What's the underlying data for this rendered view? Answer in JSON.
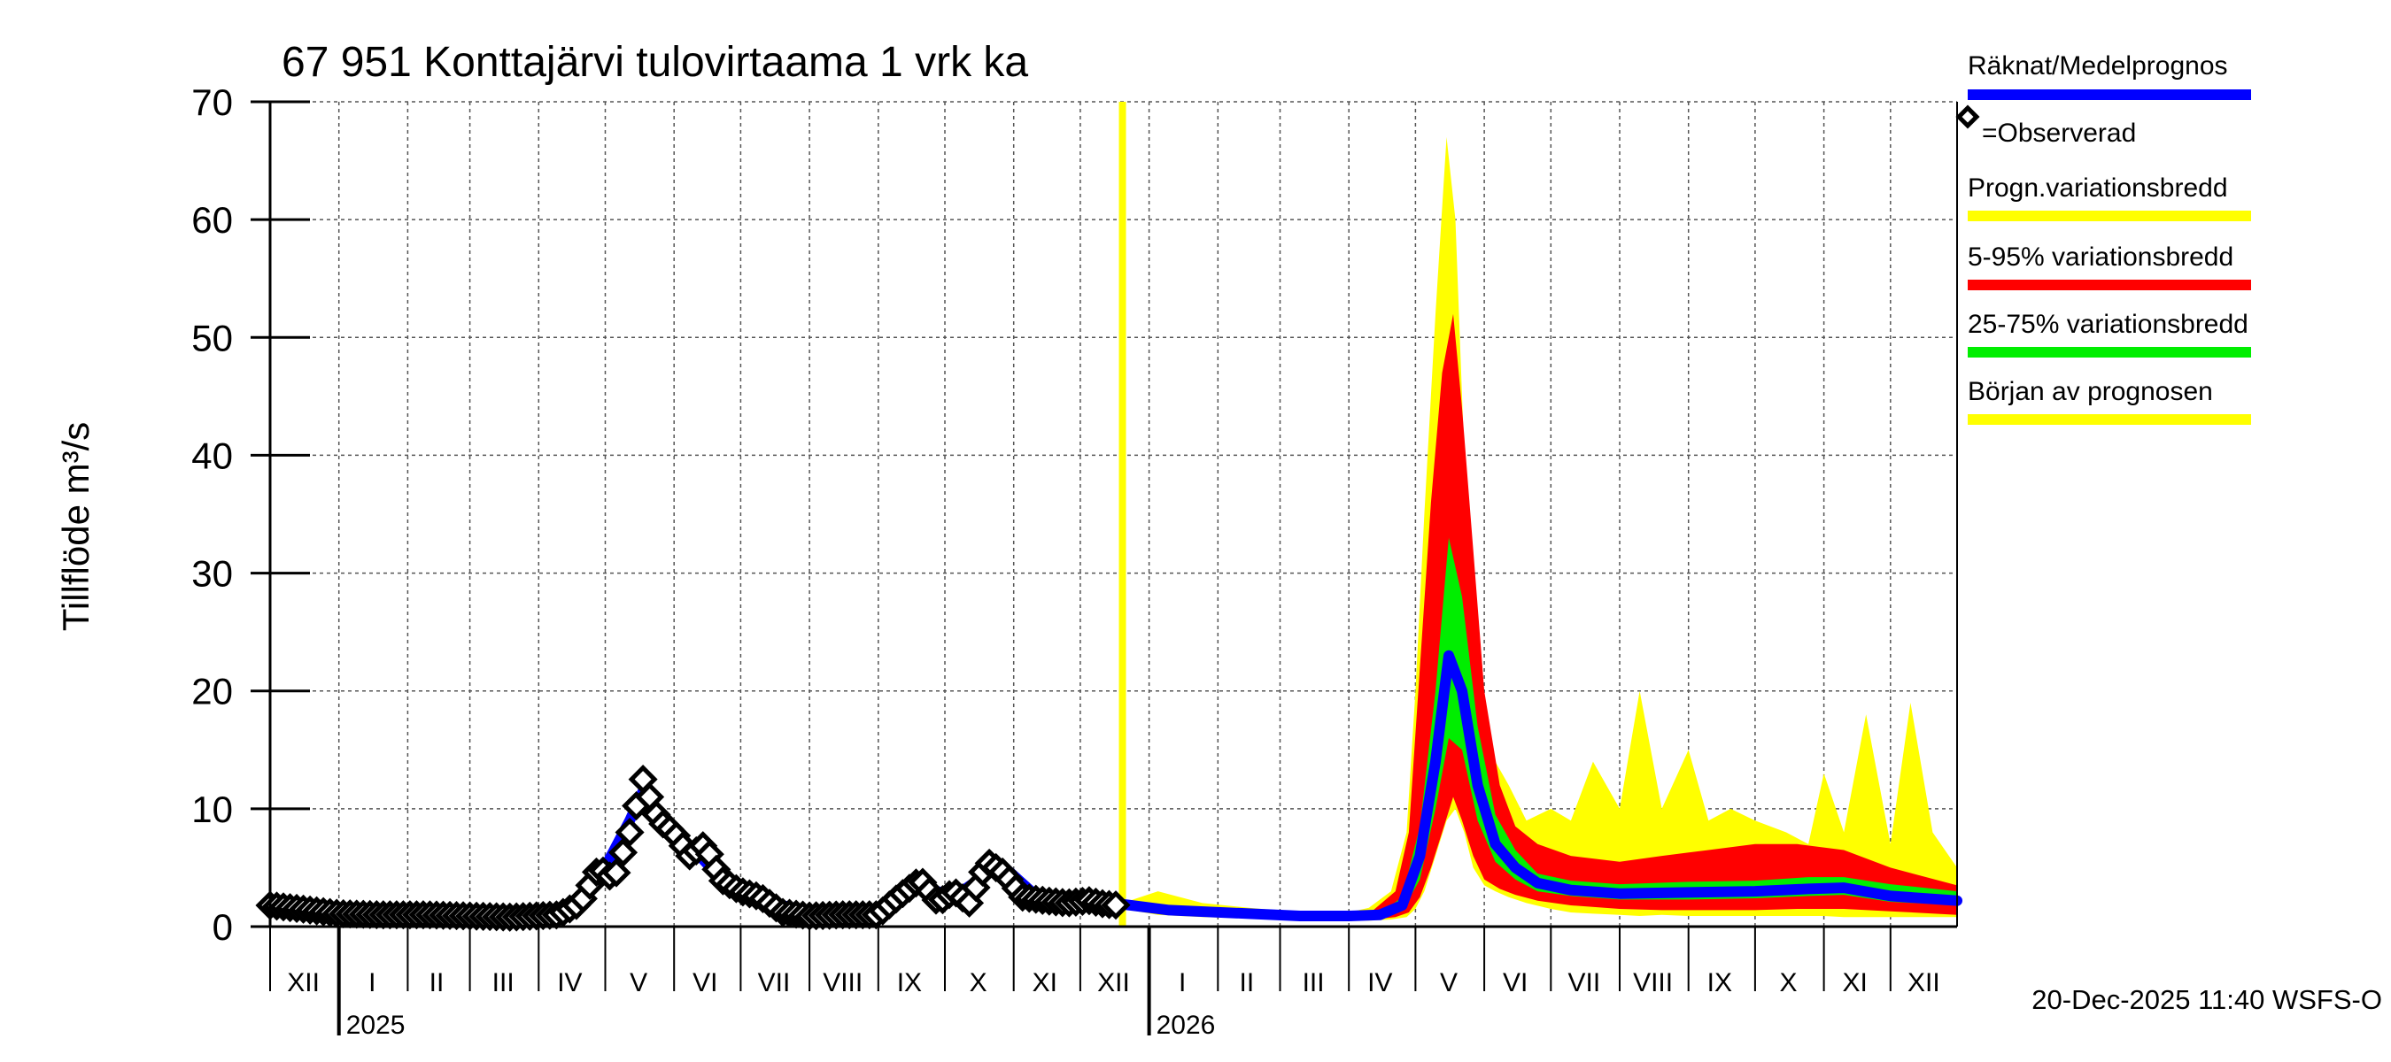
{
  "chart_data": {
    "type": "area",
    "title": "67 951 Konttajärvi tulovirtaama 1 vrk ka",
    "ylabel": "Tillflöde m³/s",
    "ylim": [
      0,
      70
    ],
    "yticks": [
      0,
      10,
      20,
      30,
      40,
      50,
      60,
      70
    ],
    "x_start": "2024-12-01",
    "x_end": "2026-12-31",
    "forecast_start": "2025-12-20",
    "month_labels": [
      {
        "label": "XII",
        "date": "2024-12-16"
      },
      {
        "label": "I",
        "date": "2025-01-16"
      },
      {
        "label": "II",
        "date": "2025-02-14"
      },
      {
        "label": "III",
        "date": "2025-03-16"
      },
      {
        "label": "IV",
        "date": "2025-04-15"
      },
      {
        "label": "V",
        "date": "2025-05-16"
      },
      {
        "label": "VI",
        "date": "2025-06-15"
      },
      {
        "label": "VII",
        "date": "2025-07-16"
      },
      {
        "label": "VIII",
        "date": "2025-08-16"
      },
      {
        "label": "IX",
        "date": "2025-09-15"
      },
      {
        "label": "X",
        "date": "2025-10-16"
      },
      {
        "label": "XI",
        "date": "2025-11-15"
      },
      {
        "label": "XII",
        "date": "2025-12-16"
      },
      {
        "label": "I",
        "date": "2026-01-16"
      },
      {
        "label": "II",
        "date": "2026-02-14"
      },
      {
        "label": "III",
        "date": "2026-03-16"
      },
      {
        "label": "IV",
        "date": "2026-04-15"
      },
      {
        "label": "V",
        "date": "2026-05-16"
      },
      {
        "label": "VI",
        "date": "2026-06-15"
      },
      {
        "label": "VII",
        "date": "2026-07-16"
      },
      {
        "label": "VIII",
        "date": "2026-08-16"
      },
      {
        "label": "IX",
        "date": "2026-09-15"
      },
      {
        "label": "X",
        "date": "2026-10-16"
      },
      {
        "label": "XI",
        "date": "2026-11-15"
      },
      {
        "label": "XII",
        "date": "2026-12-16"
      }
    ],
    "year_labels": [
      {
        "label": "2025",
        "date": "2025-01-01"
      },
      {
        "label": "2026",
        "date": "2026-01-01"
      }
    ],
    "observed": {
      "name": "Observerad",
      "x": [
        "2024-12-01",
        "2024-12-15",
        "2025-01-01",
        "2025-01-20",
        "2025-02-10",
        "2025-03-01",
        "2025-03-20",
        "2025-04-10",
        "2025-04-20",
        "2025-04-28",
        "2025-05-05",
        "2025-05-12",
        "2025-05-18",
        "2025-05-25",
        "2025-06-01",
        "2025-06-08",
        "2025-06-15",
        "2025-06-22",
        "2025-07-01",
        "2025-07-10",
        "2025-07-20",
        "2025-08-01",
        "2025-08-15",
        "2025-09-01",
        "2025-09-10",
        "2025-09-20",
        "2025-09-28",
        "2025-10-05",
        "2025-10-12",
        "2025-10-20",
        "2025-10-28",
        "2025-11-05",
        "2025-11-15",
        "2025-11-25",
        "2025-12-05",
        "2025-12-12",
        "2025-12-19"
      ],
      "values": [
        1.8,
        1.5,
        1.1,
        1.0,
        1.0,
        0.9,
        0.8,
        1.0,
        2.0,
        5.0,
        4.0,
        8.0,
        12.5,
        9.0,
        8.0,
        6.0,
        7.0,
        4.0,
        3.0,
        2.5,
        1.2,
        0.9,
        1.0,
        1.0,
        2.5,
        4.0,
        2.0,
        3.0,
        2.0,
        5.5,
        4.5,
        2.5,
        2.2,
        2.0,
        2.2,
        1.9,
        1.8
      ]
    },
    "series": [
      {
        "name": "Räknat/Medelprognos",
        "x": [
          "2024-12-01",
          "2025-01-15",
          "2025-03-01",
          "2025-04-15",
          "2025-04-28",
          "2025-05-12",
          "2025-05-18",
          "2025-05-28",
          "2025-06-10",
          "2025-06-25",
          "2025-07-15",
          "2025-08-10",
          "2025-09-01",
          "2025-09-20",
          "2025-10-05",
          "2025-10-20",
          "2025-10-28",
          "2025-11-10",
          "2025-12-01",
          "2025-12-20",
          "2026-01-10",
          "2026-02-15",
          "2026-03-10",
          "2026-04-01",
          "2026-04-15",
          "2026-04-25",
          "2026-05-03",
          "2026-05-10",
          "2026-05-16",
          "2026-05-22",
          "2026-05-29",
          "2026-06-06",
          "2026-06-15",
          "2026-06-25",
          "2026-07-10",
          "2026-08-01",
          "2026-09-01",
          "2026-10-01",
          "2026-10-25",
          "2026-11-10",
          "2026-12-01",
          "2026-12-31"
        ],
        "values": [
          1.7,
          1.0,
          0.9,
          0.9,
          4.0,
          9.0,
          11.5,
          8.5,
          6.5,
          3.5,
          2.0,
          0.9,
          1.0,
          3.5,
          2.5,
          4.5,
          5.0,
          2.8,
          2.1,
          1.9,
          1.4,
          1.1,
          0.9,
          0.9,
          1.0,
          1.8,
          6.0,
          14.0,
          23.0,
          20.0,
          12.0,
          7.0,
          5.0,
          3.7,
          3.1,
          2.8,
          2.9,
          3.0,
          3.2,
          3.3,
          2.6,
          2.2
        ]
      }
    ],
    "bands": [
      {
        "name": "Progn.variationsbredd",
        "color": "#ffff00",
        "x": [
          "2025-12-20",
          "2026-01-05",
          "2026-01-25",
          "2026-02-15",
          "2026-03-10",
          "2026-04-01",
          "2026-04-10",
          "2026-04-20",
          "2026-04-27",
          "2026-05-01",
          "2026-05-05",
          "2026-05-10",
          "2026-05-15",
          "2026-05-19",
          "2026-05-23",
          "2026-05-27",
          "2026-06-01",
          "2026-06-06",
          "2026-06-12",
          "2026-06-20",
          "2026-07-01",
          "2026-07-10",
          "2026-07-20",
          "2026-08-01",
          "2026-08-10",
          "2026-08-20",
          "2026-09-01",
          "2026-09-10",
          "2026-09-20",
          "2026-10-01",
          "2026-10-15",
          "2026-10-25",
          "2026-11-01",
          "2026-11-10",
          "2026-11-20",
          "2026-12-01",
          "2026-12-10",
          "2026-12-20",
          "2026-12-31"
        ],
        "low": [
          1.5,
          1.0,
          0.8,
          0.7,
          0.6,
          0.5,
          0.5,
          0.6,
          0.8,
          1.5,
          3.0,
          6.0,
          9.0,
          10.0,
          8.0,
          5.0,
          3.5,
          3.0,
          2.5,
          2.0,
          1.5,
          1.2,
          1.1,
          1.0,
          0.9,
          1.0,
          0.9,
          0.9,
          0.9,
          0.9,
          0.9,
          0.9,
          0.9,
          0.8,
          0.8,
          0.8,
          0.8,
          0.8,
          0.8
        ],
        "high": [
          2.0,
          3.0,
          2.0,
          1.6,
          1.2,
          1.2,
          1.6,
          3.0,
          8.0,
          20.0,
          35.0,
          52.0,
          67.0,
          60.0,
          40.0,
          25.0,
          18.0,
          14.0,
          12.0,
          9.0,
          10.0,
          9.0,
          14.0,
          10.0,
          20.0,
          10.0,
          15.0,
          9.0,
          10.0,
          9.0,
          8.0,
          7.0,
          13.0,
          8.0,
          18.0,
          7.0,
          19.0,
          8.0,
          5.0
        ]
      },
      {
        "name": "5-95% variationsbredd",
        "color": "#ff0000",
        "x": [
          "2025-12-20",
          "2026-01-15",
          "2026-02-15",
          "2026-03-10",
          "2026-04-01",
          "2026-04-12",
          "2026-04-22",
          "2026-04-28",
          "2026-05-03",
          "2026-05-08",
          "2026-05-13",
          "2026-05-18",
          "2026-05-22",
          "2026-05-27",
          "2026-06-01",
          "2026-06-08",
          "2026-06-15",
          "2026-06-25",
          "2026-07-10",
          "2026-08-01",
          "2026-08-20",
          "2026-09-10",
          "2026-10-01",
          "2026-10-20",
          "2026-11-10",
          "2026-12-01",
          "2026-12-31"
        ],
        "low": [
          1.6,
          1.2,
          0.9,
          0.7,
          0.6,
          0.6,
          0.8,
          1.2,
          2.5,
          5.0,
          8.0,
          11.0,
          9.0,
          6.0,
          4.0,
          3.2,
          2.7,
          2.2,
          1.8,
          1.5,
          1.4,
          1.4,
          1.4,
          1.5,
          1.5,
          1.3,
          1.0
        ],
        "high": [
          1.9,
          1.5,
          1.2,
          1.0,
          1.0,
          1.4,
          3.0,
          8.0,
          22.0,
          36.0,
          47.0,
          52.0,
          44.0,
          32.0,
          20.0,
          12.0,
          8.5,
          7.0,
          6.0,
          5.5,
          6.0,
          6.5,
          7.0,
          7.0,
          6.5,
          5.0,
          3.5
        ]
      },
      {
        "name": "25-75% variationsbredd",
        "color": "#00ee00",
        "x": [
          "2025-12-20",
          "2026-01-15",
          "2026-02-15",
          "2026-03-10",
          "2026-04-01",
          "2026-04-15",
          "2026-04-25",
          "2026-05-03",
          "2026-05-10",
          "2026-05-16",
          "2026-05-22",
          "2026-05-29",
          "2026-06-06",
          "2026-06-15",
          "2026-06-25",
          "2026-07-10",
          "2026-08-01",
          "2026-09-01",
          "2026-10-01",
          "2026-10-25",
          "2026-11-10",
          "2026-12-01",
          "2026-12-31"
        ],
        "low": [
          1.7,
          1.3,
          1.0,
          0.8,
          0.8,
          0.9,
          1.3,
          4.0,
          10.0,
          16.0,
          15.0,
          9.0,
          5.5,
          4.0,
          3.0,
          2.6,
          2.3,
          2.3,
          2.4,
          2.6,
          2.7,
          2.1,
          1.8
        ],
        "high": [
          1.8,
          1.5,
          1.2,
          1.0,
          1.0,
          1.1,
          2.5,
          8.5,
          20.0,
          33.0,
          28.0,
          17.0,
          9.5,
          6.5,
          4.5,
          3.9,
          3.6,
          3.8,
          3.9,
          4.2,
          4.2,
          3.6,
          3.0
        ]
      }
    ],
    "legend": [
      {
        "label": "Räknat/Medelprognos",
        "color": "#0000ff"
      },
      {
        "label": "=Observerad",
        "color": "#000000"
      },
      {
        "label": "Progn.variationsbredd",
        "color": "#ffff00"
      },
      {
        "label": "5-95% variationsbredd",
        "color": "#ff0000"
      },
      {
        "label": "25-75% variationsbredd",
        "color": "#00ee00"
      },
      {
        "label": "Början av prognosen",
        "color": "#ffff00"
      }
    ],
    "legend_position": "right",
    "grid": true,
    "footer": "20-Dec-2025 11:40 WSFS-O"
  }
}
